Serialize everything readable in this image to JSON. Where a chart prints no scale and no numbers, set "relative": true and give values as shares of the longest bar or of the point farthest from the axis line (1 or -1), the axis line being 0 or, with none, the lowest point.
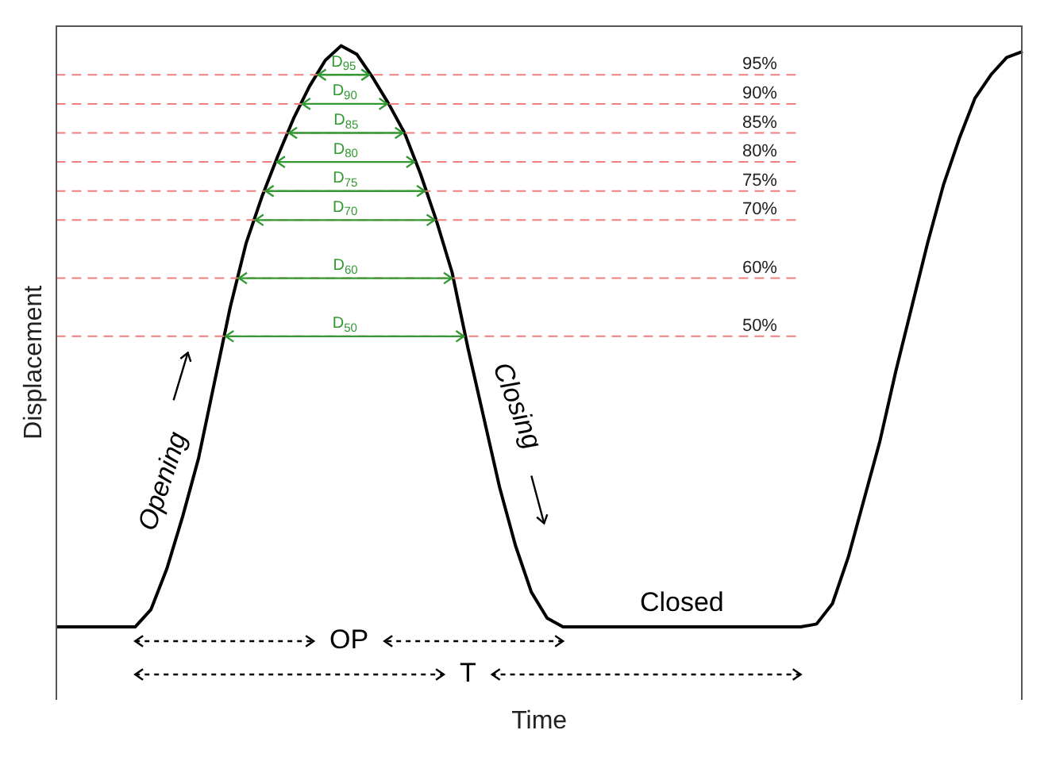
{
  "chart_data": {
    "type": "line",
    "relative": true,
    "xlabel": "Time",
    "ylabel": "Displacement",
    "categories": [
      null,
      null,
      null,
      null,
      null,
      null,
      null,
      null,
      null,
      null,
      null,
      null,
      null,
      null,
      null,
      null,
      null,
      null,
      null,
      null,
      null,
      null,
      null,
      null,
      null,
      null,
      null,
      null,
      null,
      null,
      null,
      null,
      null,
      null,
      null,
      null,
      null,
      null,
      null,
      null,
      null,
      null,
      null,
      null,
      null,
      null,
      null,
      null,
      null,
      null,
      null,
      null,
      null,
      null,
      null,
      null,
      null,
      null,
      null,
      null,
      null,
      null
    ],
    "series": [
      {
        "color": "#000000",
        "values": [
          0,
          0,
          0,
          0,
          0,
          0,
          0.03,
          0.1,
          0.19,
          0.29,
          0.42,
          0.55,
          0.66,
          0.74,
          0.81,
          0.875,
          0.93,
          0.975,
          1,
          0.985,
          0.945,
          0.9,
          0.85,
          0.78,
          0.7,
          0.61,
          0.48,
          0.36,
          0.24,
          0.14,
          0.06,
          0.015,
          0,
          0,
          0,
          0,
          0,
          0,
          0,
          0,
          0,
          0,
          0,
          0,
          0,
          0,
          0,
          0,
          0.005,
          0.04,
          0.12,
          0.22,
          0.32,
          0.44,
          0.55,
          0.66,
          0.76,
          0.84,
          0.91,
          0.95,
          0.98,
          0.99
        ]
      }
    ],
    "ref_lines": [
      {
        "axis": "y",
        "value": 0.95,
        "label": "95%",
        "color": "#f08080",
        "line_style": "dashed"
      },
      {
        "axis": "y",
        "value": 0.9,
        "label": "90%",
        "color": "#f08080",
        "line_style": "dashed"
      },
      {
        "axis": "y",
        "value": 0.85,
        "label": "85%",
        "color": "#f08080",
        "line_style": "dashed"
      },
      {
        "axis": "y",
        "value": 0.8,
        "label": "80%",
        "color": "#f08080",
        "line_style": "dashed"
      },
      {
        "axis": "y",
        "value": 0.75,
        "label": "75%",
        "color": "#f08080",
        "line_style": "dashed"
      },
      {
        "axis": "y",
        "value": 0.7,
        "label": "70%",
        "color": "#f08080",
        "line_style": "dashed"
      },
      {
        "axis": "y",
        "value": 0.6,
        "label": "60%",
        "color": "#f08080",
        "line_style": "dashed"
      },
      {
        "axis": "y",
        "value": 0.5,
        "label": "50%",
        "color": "#f08080",
        "line_style": "dashed"
      }
    ],
    "annotations": [
      {
        "text": "D$_{95}$",
        "y": 0.95
      },
      {
        "text": "D$_{90}$",
        "y": 0.9
      },
      {
        "text": "D$_{85}$",
        "y": 0.85
      },
      {
        "text": "D$_{80}$",
        "y": 0.8
      },
      {
        "text": "D$_{75}$",
        "y": 0.75
      },
      {
        "text": "D$_{70}$",
        "y": 0.7
      },
      {
        "text": "D$_{60}$",
        "y": 0.6
      },
      {
        "text": "D$_{50}$",
        "y": 0.5
      },
      "Opening",
      "Closing",
      "Closed",
      "OP",
      "T"
    ],
    "grid": false,
    "legend": false,
    "tick_labels": false,
    "marker": "none",
    "line_style": "solid"
  }
}
